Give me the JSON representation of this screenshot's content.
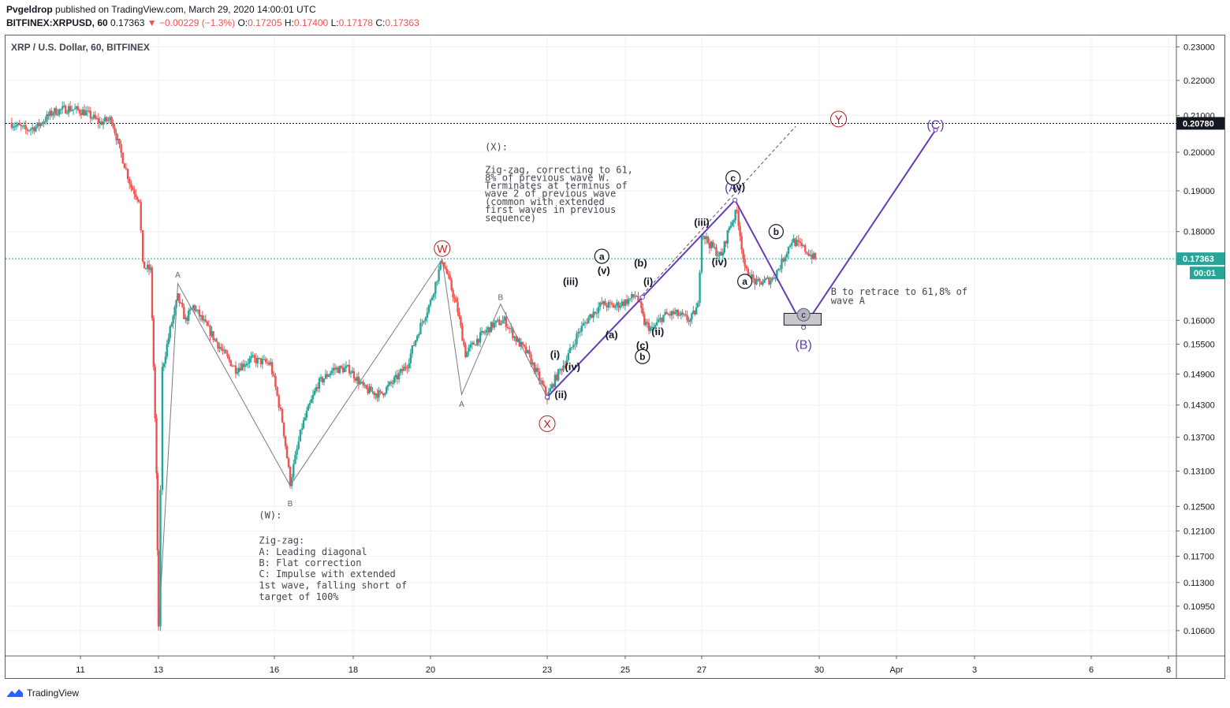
{
  "header": {
    "author": "Pvgeldrop",
    "published": "published on TradingView.com, March 29, 2020 14:00:01 UTC",
    "symbol": "BITFINEX:XRPUSD, 60",
    "last": "0.17363",
    "change": "−0.00229 (−1.3%)",
    "o_label": "O:",
    "o": "0.17205",
    "h_label": "H:",
    "h": "0.17400",
    "l_label": "L:",
    "l": "0.17178",
    "c_label": "C:",
    "c": "0.17363"
  },
  "footer": {
    "brand": "TradingView"
  },
  "colors": {
    "up": "#26a69a",
    "down": "#ef5350",
    "wave": "#673ab7",
    "annot": "#131722",
    "circleRed": "#b71c1c"
  },
  "chart_data": {
    "type": "candlestick",
    "title": "XRP / U.S. Dollar, 60, BITFINEX",
    "x_ticks": [
      "11",
      "13",
      "16",
      "18",
      "20",
      "23",
      "25",
      "27",
      "30",
      "Apr",
      "3",
      "6",
      "8"
    ],
    "y_ticks": [
      "0.23000",
      "0.22000",
      "0.21000",
      "0.20000",
      "0.19000",
      "0.18000",
      "0.16000",
      "0.15500",
      "0.14900",
      "0.14300",
      "0.13700",
      "0.13100",
      "0.12500",
      "0.12100",
      "0.11700",
      "0.11300",
      "0.10950",
      "0.10600"
    ],
    "y_tick_values": [
      0.23,
      0.22,
      0.21,
      0.2,
      0.19,
      0.18,
      0.16,
      0.155,
      0.149,
      0.143,
      0.137,
      0.131,
      0.125,
      0.121,
      0.117,
      0.113,
      0.1095,
      0.106
    ],
    "ylim": [
      0.1025,
      0.2335
    ],
    "price_lines": [
      {
        "label": "0.20780",
        "value": 0.2078,
        "style": "dotted-black"
      },
      {
        "label": "0.17363",
        "value": 0.17363,
        "style": "dotted-teal"
      }
    ],
    "countdown": "00:01",
    "price_path": [
      [
        9.2,
        0.208
      ],
      [
        9.6,
        0.206
      ],
      [
        9.9,
        0.207
      ],
      [
        10.3,
        0.211
      ],
      [
        10.7,
        0.212
      ],
      [
        11.1,
        0.211
      ],
      [
        11.5,
        0.208
      ],
      [
        11.8,
        0.209
      ],
      [
        12.0,
        0.201
      ],
      [
        12.3,
        0.191
      ],
      [
        12.5,
        0.188
      ],
      [
        12.6,
        0.172
      ],
      [
        12.8,
        0.171
      ],
      [
        12.95,
        0.13
      ],
      [
        13.0,
        0.106
      ],
      [
        13.1,
        0.15
      ],
      [
        13.3,
        0.158
      ],
      [
        13.5,
        0.165
      ],
      [
        13.7,
        0.16
      ],
      [
        13.9,
        0.163
      ],
      [
        14.3,
        0.158
      ],
      [
        14.7,
        0.153
      ],
      [
        15.0,
        0.15
      ],
      [
        15.4,
        0.152
      ],
      [
        15.9,
        0.151
      ],
      [
        16.2,
        0.14
      ],
      [
        16.4,
        0.129
      ],
      [
        16.7,
        0.139
      ],
      [
        17.1,
        0.147
      ],
      [
        17.5,
        0.15
      ],
      [
        17.9,
        0.15
      ],
      [
        18.3,
        0.146
      ],
      [
        18.7,
        0.145
      ],
      [
        19.1,
        0.148
      ],
      [
        19.4,
        0.151
      ],
      [
        19.7,
        0.158
      ],
      [
        20.0,
        0.164
      ],
      [
        20.3,
        0.1735
      ],
      [
        20.5,
        0.168
      ],
      [
        20.7,
        0.162
      ],
      [
        20.9,
        0.153
      ],
      [
        21.2,
        0.156
      ],
      [
        21.6,
        0.159
      ],
      [
        21.9,
        0.16
      ],
      [
        22.2,
        0.156
      ],
      [
        22.5,
        0.153
      ],
      [
        22.8,
        0.148
      ],
      [
        23.0,
        0.1445
      ],
      [
        23.2,
        0.148
      ],
      [
        23.5,
        0.152
      ],
      [
        23.8,
        0.1575
      ],
      [
        24.1,
        0.161
      ],
      [
        24.4,
        0.1635
      ],
      [
        24.7,
        0.163
      ],
      [
        25.0,
        0.164
      ],
      [
        25.3,
        0.1655
      ],
      [
        25.5,
        0.1595
      ],
      [
        25.7,
        0.158
      ],
      [
        26.0,
        0.161
      ],
      [
        26.3,
        0.1615
      ],
      [
        26.7,
        0.16
      ],
      [
        26.9,
        0.163
      ],
      [
        27.0,
        0.18
      ],
      [
        27.2,
        0.177
      ],
      [
        27.5,
        0.174
      ],
      [
        27.7,
        0.181
      ],
      [
        27.9,
        0.185
      ],
      [
        28.1,
        0.171
      ],
      [
        28.4,
        0.168
      ],
      [
        28.8,
        0.169
      ],
      [
        29.0,
        0.172
      ],
      [
        29.3,
        0.178
      ],
      [
        29.6,
        0.176
      ],
      [
        29.9,
        0.1736
      ]
    ],
    "annotations": [
      {
        "text": "(X):",
        "x": 21.4,
        "y": 0.2005
      },
      {
        "text": "Zig-zag, correcting to 61,",
        "x": 21.4,
        "y": 0.1945
      },
      {
        "text": "8% of previous wave W.",
        "x": 21.4,
        "y": 0.1925
      },
      {
        "text": "Terminates at terminus of",
        "x": 21.4,
        "y": 0.1905
      },
      {
        "text": "wave 2 of previous wave",
        "x": 21.4,
        "y": 0.1885
      },
      {
        "text": "(common with extended",
        "x": 21.4,
        "y": 0.1865
      },
      {
        "text": "first waves in previous",
        "x": 21.4,
        "y": 0.1845
      },
      {
        "text": "sequence)",
        "x": 21.4,
        "y": 0.1825
      },
      {
        "text": "(W):",
        "x": 15.6,
        "y": 0.123
      },
      {
        "text": "Zig-zag:",
        "x": 15.6,
        "y": 0.119
      },
      {
        "text": "A: Leading diagonal",
        "x": 15.6,
        "y": 0.1172
      },
      {
        "text": "B: Flat correction",
        "x": 15.6,
        "y": 0.1155
      },
      {
        "text": "C: Impulse with extended",
        "x": 15.6,
        "y": 0.1138
      },
      {
        "text": "1st wave, falling short of",
        "x": 15.6,
        "y": 0.1121
      },
      {
        "text": "target of 100%",
        "x": 15.6,
        "y": 0.1104
      },
      {
        "text": "B to retrace to 61,8% of",
        "x": 30.3,
        "y": 0.1655
      },
      {
        "text": "wave A",
        "x": 30.3,
        "y": 0.1635
      }
    ],
    "wave_labels": [
      {
        "text": "A",
        "x": 13.5,
        "y": 0.17,
        "kind": "plain-small"
      },
      {
        "text": "B",
        "x": 16.4,
        "y": 0.1255,
        "kind": "plain-small"
      },
      {
        "text": "B",
        "x": 21.8,
        "y": 0.165,
        "kind": "plain-small"
      },
      {
        "text": "A",
        "x": 20.8,
        "y": 0.1432,
        "kind": "plain-small"
      },
      {
        "text": "W",
        "x": 20.3,
        "y": 0.176,
        "kind": "circle-red"
      },
      {
        "text": "X",
        "x": 23.0,
        "y": 0.1395,
        "kind": "circle-red"
      },
      {
        "text": "Y",
        "x": 30.5,
        "y": 0.209,
        "kind": "circle-red"
      },
      {
        "text": "(C)",
        "x": 33.0,
        "y": 0.2075,
        "kind": "purple"
      },
      {
        "text": "(B)",
        "x": 29.6,
        "y": 0.155,
        "kind": "purple"
      },
      {
        "text": "(A)",
        "x": 27.8,
        "y": 0.191,
        "kind": "purple"
      },
      {
        "text": "(i)",
        "x": 23.2,
        "y": 0.153,
        "kind": "black"
      },
      {
        "text": "(ii)",
        "x": 23.35,
        "y": 0.145,
        "kind": "black"
      },
      {
        "text": "(iii)",
        "x": 23.6,
        "y": 0.1685,
        "kind": "black"
      },
      {
        "text": "(iv)",
        "x": 23.65,
        "y": 0.1505,
        "kind": "black"
      },
      {
        "text": "(v)",
        "x": 24.45,
        "y": 0.171,
        "kind": "black"
      },
      {
        "text": "(a)",
        "x": 24.65,
        "y": 0.157,
        "kind": "black"
      },
      {
        "text": "(b)",
        "x": 25.4,
        "y": 0.1727,
        "kind": "black"
      },
      {
        "text": "(c)",
        "x": 25.45,
        "y": 0.1548,
        "kind": "black"
      },
      {
        "text": "(i)",
        "x": 25.6,
        "y": 0.1685,
        "kind": "black"
      },
      {
        "text": "(ii)",
        "x": 25.85,
        "y": 0.1577,
        "kind": "black"
      },
      {
        "text": "(iii)",
        "x": 27.0,
        "y": 0.1823,
        "kind": "black"
      },
      {
        "text": "(iv)",
        "x": 27.45,
        "y": 0.173,
        "kind": "black"
      },
      {
        "text": "(v)",
        "x": 27.95,
        "y": 0.191,
        "kind": "black"
      },
      {
        "text": "a",
        "x": 24.4,
        "y": 0.1742,
        "kind": "circle-black"
      },
      {
        "text": "b",
        "x": 25.45,
        "y": 0.1525,
        "kind": "circle-black"
      },
      {
        "text": "c",
        "x": 27.8,
        "y": 0.1933,
        "kind": "circle-black"
      },
      {
        "text": "a",
        "x": 28.1,
        "y": 0.1685,
        "kind": "circle-black"
      },
      {
        "text": "b",
        "x": 28.9,
        "y": 0.18,
        "kind": "circle-black"
      },
      {
        "text": "c",
        "x": 29.6,
        "y": 0.1612,
        "kind": "circle-gray"
      }
    ],
    "lines": [
      {
        "style": "thin-gray",
        "points": [
          [
            13.0,
            0.106
          ],
          [
            13.5,
            0.168
          ],
          [
            16.4,
            0.1285
          ],
          [
            20.3,
            0.1735
          ],
          [
            20.8,
            0.145
          ],
          [
            21.8,
            0.1635
          ],
          [
            23.0,
            0.1445
          ]
        ]
      },
      {
        "style": "purple",
        "points": [
          [
            23.0,
            0.1445
          ],
          [
            25.45,
            0.165
          ],
          [
            27.85,
            0.1877
          ],
          [
            29.6,
            0.1585
          ],
          [
            33.0,
            0.206
          ]
        ]
      },
      {
        "style": "dashed-gray",
        "points": [
          [
            25.45,
            0.1655
          ],
          [
            29.4,
            0.207
          ]
        ]
      }
    ],
    "box": {
      "x1": 29.1,
      "x2": 30.05,
      "y1": 0.159,
      "y2": 0.1615
    }
  }
}
